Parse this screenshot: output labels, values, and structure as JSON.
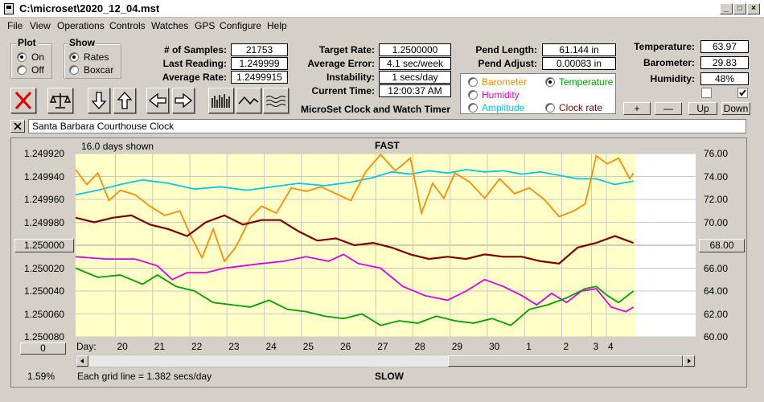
{
  "window": {
    "title": "C:\\microset\\2020_12_04.mst"
  },
  "menu": [
    "File",
    "View",
    "Operations",
    "Controls",
    "Watches",
    "GPS",
    "Configure",
    "Help"
  ],
  "plot_group": {
    "title": "Plot",
    "on": "On",
    "off": "Off",
    "selected": "On"
  },
  "show_group": {
    "title": "Show",
    "rates": "Rates",
    "boxcar": "Boxcar",
    "selected": "Rates"
  },
  "stats": {
    "samples_label": "# of Samples:",
    "samples": "21753",
    "last_label": "Last Reading:",
    "last": "1.249999",
    "avg_label": "Average Rate:",
    "avg": "1.2499915"
  },
  "rates": {
    "target_label": "Target Rate:",
    "target": "1.2500000",
    "error_label": "Average Error:",
    "error": "4.1 sec/week",
    "instab_label": "Instability:",
    "instab": "1 secs/day",
    "time_label": "Current Time:",
    "time": "12:00:37 AM"
  },
  "pendulum": {
    "length_label": "Pend Length:",
    "length": "61.144 in",
    "adjust_label": "Pend Adjust:",
    "adjust": "0.00083 in"
  },
  "sensor_options": {
    "barometer": "Barometer",
    "temperature": "Temperature",
    "humidity": "Humidity",
    "amplitude": "Amplitude",
    "clock_rate": "Clock rate",
    "selected": "Temperature",
    "colors": {
      "barometer": "#ff8c00",
      "temperature": "#00a000",
      "humidity": "#e000e0",
      "amplitude": "#00c8e8",
      "clock_rate": "#800000"
    }
  },
  "environment": {
    "temp_label": "Temperature:",
    "temp": "63.97",
    "baro_label": "Barometer:",
    "baro": "29.83",
    "hum_label": "Humidity:",
    "hum": "48%"
  },
  "env_buttons": {
    "plus": "+",
    "minus": "—",
    "up": "Up",
    "down": "Down"
  },
  "app_caption": "MicroSet Clock and Watch Timer",
  "clock_name": "Santa Barbara Courthouse Clock",
  "chart_data": {
    "type": "line",
    "days_shown": "16.0 days shown",
    "top_label": "FAST",
    "bottom_label": "SLOW",
    "left_ticks": [
      "1.249920",
      "1.249940",
      "1.249960",
      "1.249980",
      "1.250000",
      "1.250020",
      "1.250040",
      "1.250060",
      "1.250080"
    ],
    "left_center": "1.250000",
    "right_ticks": [
      "76.00",
      "74.00",
      "72.00",
      "70.00",
      "68.00",
      "66.00",
      "64.00",
      "62.00",
      "60.00"
    ],
    "right_center": "68.00",
    "x_label": "Day:",
    "x_ticks": [
      "20",
      "21",
      "22",
      "23",
      "24",
      "25",
      "26",
      "27",
      "28",
      "29",
      "30",
      "1",
      "2",
      "3",
      "4"
    ],
    "x_tick_pos_days": [
      1.2,
      2.2,
      3.2,
      4.2,
      5.2,
      6.2,
      7.2,
      8.2,
      9.2,
      10.2,
      11.2,
      12.2,
      13.2,
      14.0,
      14.4
    ],
    "x_range_days": [
      0,
      16
    ],
    "grid": true,
    "background": "#ffffc8",
    "grid_note": "Each grid line = 1.382 secs/day",
    "percent": "1.59%",
    "offset_button": "0",
    "series": [
      {
        "key": "amplitude",
        "axis": "right",
        "color": "#00c8e8",
        "x": [
          0,
          0.6,
          1.2,
          1.8,
          2.5,
          3.2,
          3.9,
          4.6,
          5.3,
          6.0,
          6.7,
          7.4,
          8.0,
          8.5,
          9.0,
          9.5,
          10.0,
          10.5,
          11.0,
          11.5,
          12.0,
          12.5,
          13.0,
          13.5,
          14.0,
          14.5,
          15.0
        ],
        "y": [
          72.4,
          72.8,
          73.3,
          73.7,
          73.4,
          72.9,
          73.1,
          72.8,
          73.1,
          73.4,
          73.2,
          73.5,
          73.9,
          74.4,
          74.2,
          74.5,
          74.3,
          74.6,
          74.4,
          74.5,
          74.2,
          74.4,
          74.1,
          73.8,
          73.8,
          73.3,
          73.6
        ]
      },
      {
        "key": "barometer",
        "axis": "right",
        "color": "#ff8c00",
        "x": [
          0,
          0.3,
          0.6,
          0.9,
          1.2,
          1.6,
          2.0,
          2.4,
          2.8,
          3.1,
          3.4,
          3.7,
          4.0,
          4.3,
          4.7,
          5.0,
          5.4,
          5.8,
          6.2,
          6.6,
          7.0,
          7.4,
          7.8,
          8.2,
          8.6,
          9.0,
          9.3,
          9.6,
          9.9,
          10.2,
          10.6,
          11.0,
          11.4,
          11.8,
          12.2,
          12.6,
          13.0,
          13.4,
          13.7,
          14.0,
          14.3,
          14.6,
          14.9,
          15.0
        ],
        "y": [
          74.6,
          73.3,
          74.3,
          71.9,
          72.8,
          72.4,
          71.4,
          70.6,
          71.0,
          68.8,
          66.9,
          69.4,
          66.6,
          67.8,
          70.4,
          71.4,
          70.8,
          73.0,
          72.7,
          73.1,
          72.5,
          71.9,
          74.4,
          75.9,
          74.5,
          75.6,
          70.8,
          73.4,
          72.1,
          74.3,
          73.5,
          72.1,
          73.8,
          72.5,
          73.0,
          72.0,
          70.5,
          71.0,
          71.6,
          75.8,
          75.1,
          75.6,
          73.8,
          74.3
        ]
      },
      {
        "key": "clock_rate",
        "axis": "left",
        "color": "#800000",
        "x": [
          0,
          0.5,
          1.0,
          1.5,
          2.0,
          2.5,
          3.0,
          3.5,
          4.0,
          4.5,
          5.0,
          5.5,
          6.0,
          6.5,
          7.0,
          7.5,
          8.0,
          8.5,
          9.0,
          9.5,
          10.0,
          10.5,
          11.0,
          11.5,
          12.0,
          12.5,
          13.0,
          13.5,
          14.0,
          14.5,
          15.0
        ],
        "y": [
          1.249976,
          1.24998,
          1.249976,
          1.249974,
          1.249982,
          1.249986,
          1.249992,
          1.24998,
          1.249974,
          1.249982,
          1.249978,
          1.249978,
          1.249988,
          1.249996,
          1.249994,
          1.25,
          1.249998,
          1.250002,
          1.250008,
          1.250012,
          1.25001,
          1.250012,
          1.250008,
          1.25001,
          1.25001,
          1.250014,
          1.250016,
          1.250002,
          1.249998,
          1.249992,
          1.249998
        ]
      },
      {
        "key": "humidity",
        "axis": "left",
        "color": "#e000e0",
        "x": [
          0,
          0.8,
          1.6,
          2.2,
          2.6,
          3.0,
          3.5,
          4.0,
          4.5,
          5.0,
          5.6,
          6.2,
          6.8,
          7.2,
          7.6,
          8.2,
          8.8,
          9.4,
          10.0,
          10.5,
          11.0,
          11.5,
          12.0,
          12.4,
          12.8,
          13.2,
          13.6,
          14.0,
          14.4,
          14.8,
          15.0
        ],
        "y": [
          1.25001,
          1.250012,
          1.250012,
          1.250018,
          1.25003,
          1.250024,
          1.250024,
          1.25002,
          1.250018,
          1.250016,
          1.250014,
          1.25001,
          1.250014,
          1.250008,
          1.250016,
          1.25002,
          1.250036,
          1.250044,
          1.250048,
          1.25004,
          1.25003,
          1.250036,
          1.250044,
          1.250052,
          1.250042,
          1.25005,
          1.25004,
          1.250038,
          1.250054,
          1.250058,
          1.250054
        ]
      },
      {
        "key": "temperature",
        "axis": "left",
        "color": "#00a000",
        "x": [
          0,
          0.6,
          1.2,
          1.8,
          2.2,
          2.7,
          3.2,
          3.7,
          4.2,
          4.7,
          5.2,
          5.7,
          6.2,
          6.7,
          7.2,
          7.7,
          8.2,
          8.7,
          9.2,
          9.7,
          10.2,
          10.7,
          11.2,
          11.7,
          12.2,
          12.7,
          13.2,
          13.7,
          14.0,
          14.3,
          14.6,
          15.0
        ],
        "y": [
          1.25002,
          1.250028,
          1.250026,
          1.250034,
          1.250026,
          1.250036,
          1.25004,
          1.25005,
          1.250052,
          1.250054,
          1.250048,
          1.250056,
          1.250058,
          1.250062,
          1.250064,
          1.25006,
          1.25007,
          1.250066,
          1.250068,
          1.250062,
          1.250066,
          1.250068,
          1.250064,
          1.25007,
          1.250056,
          1.250052,
          1.250046,
          1.250038,
          1.250036,
          1.250044,
          1.25005,
          1.25004
        ]
      }
    ]
  }
}
